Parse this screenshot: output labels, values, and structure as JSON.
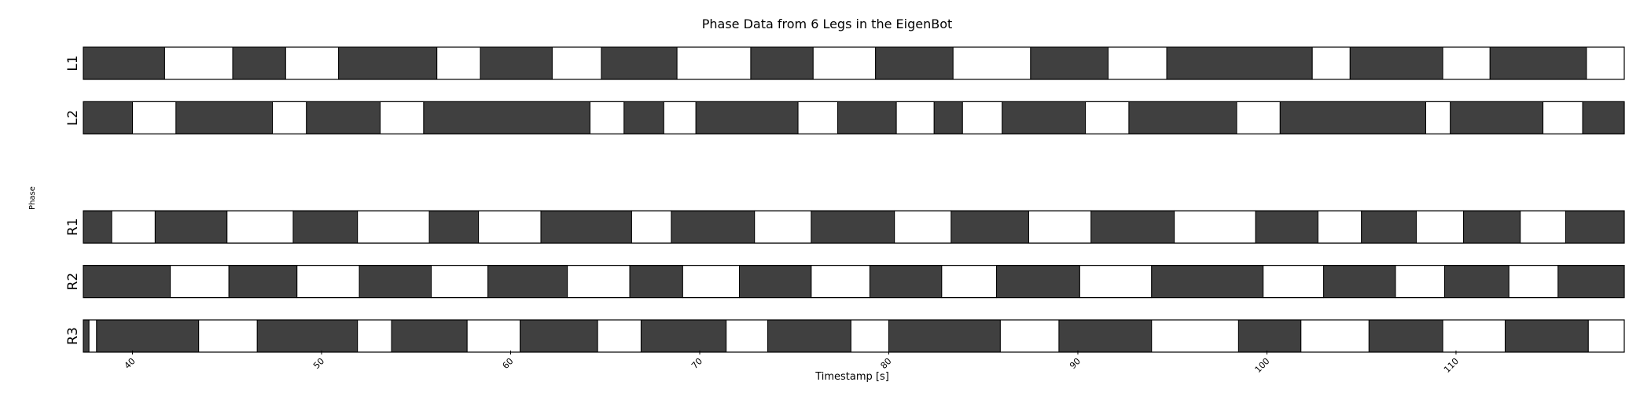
{
  "chart_data": {
    "type": "gantt",
    "title": "Phase Data from 6 Legs in the EigenBot",
    "xlabel": "Timestamp [s]",
    "ylabel": "Phase",
    "xlim": [
      37.4,
      118.9
    ],
    "xticks": [
      40,
      50,
      60,
      70,
      80,
      90,
      100,
      110
    ],
    "stance_color": "#404040",
    "swing_color": "#ffffff",
    "rows": [
      {
        "label": "L1",
        "start": 37.4,
        "first": "dark",
        "bounds": [
          41.7,
          45.3,
          48.1,
          50.9,
          56.1,
          58.4,
          62.2,
          64.8,
          68.8,
          72.7,
          76.0,
          79.3,
          83.4,
          87.5,
          91.6,
          94.7,
          102.4,
          104.4,
          109.3,
          111.8,
          116.9
        ]
      },
      {
        "label": "L2",
        "start": 37.4,
        "first": "dark",
        "bounds": [
          40.0,
          42.3,
          47.4,
          49.2,
          53.1,
          55.4,
          64.2,
          66.0,
          68.1,
          69.8,
          75.2,
          77.3,
          80.4,
          82.4,
          83.9,
          86.0,
          90.4,
          92.7,
          98.4,
          100.7,
          108.4,
          109.7,
          114.6,
          116.7
        ]
      },
      {
        "label": "",
        "start": 37.4,
        "first": "dark",
        "bounds": [],
        "empty": true
      },
      {
        "label": "R1",
        "start": 37.4,
        "first": "dark",
        "bounds": [
          38.9,
          41.2,
          45.0,
          48.5,
          51.9,
          55.7,
          58.3,
          61.6,
          66.4,
          68.5,
          72.9,
          75.9,
          80.3,
          83.3,
          87.4,
          90.7,
          95.1,
          99.4,
          102.7,
          105.0,
          107.9,
          110.4,
          113.4,
          115.8
        ]
      },
      {
        "label": "R2",
        "start": 37.4,
        "first": "dark",
        "bounds": [
          42.0,
          45.1,
          48.7,
          52.0,
          55.8,
          58.8,
          63.0,
          66.3,
          69.1,
          72.1,
          75.9,
          79.0,
          82.8,
          85.7,
          90.1,
          93.9,
          99.8,
          103.0,
          106.8,
          109.4,
          112.8,
          115.4
        ]
      },
      {
        "label": "R3",
        "start": 37.4,
        "first": "dark",
        "bounds": [
          37.7,
          38.1,
          43.5,
          46.6,
          51.9,
          53.7,
          57.7,
          60.5,
          64.6,
          66.9,
          71.4,
          73.6,
          78.0,
          80.0,
          85.9,
          89.0,
          93.9,
          98.5,
          101.8,
          105.4,
          109.3,
          112.6,
          117.0
        ]
      }
    ]
  }
}
